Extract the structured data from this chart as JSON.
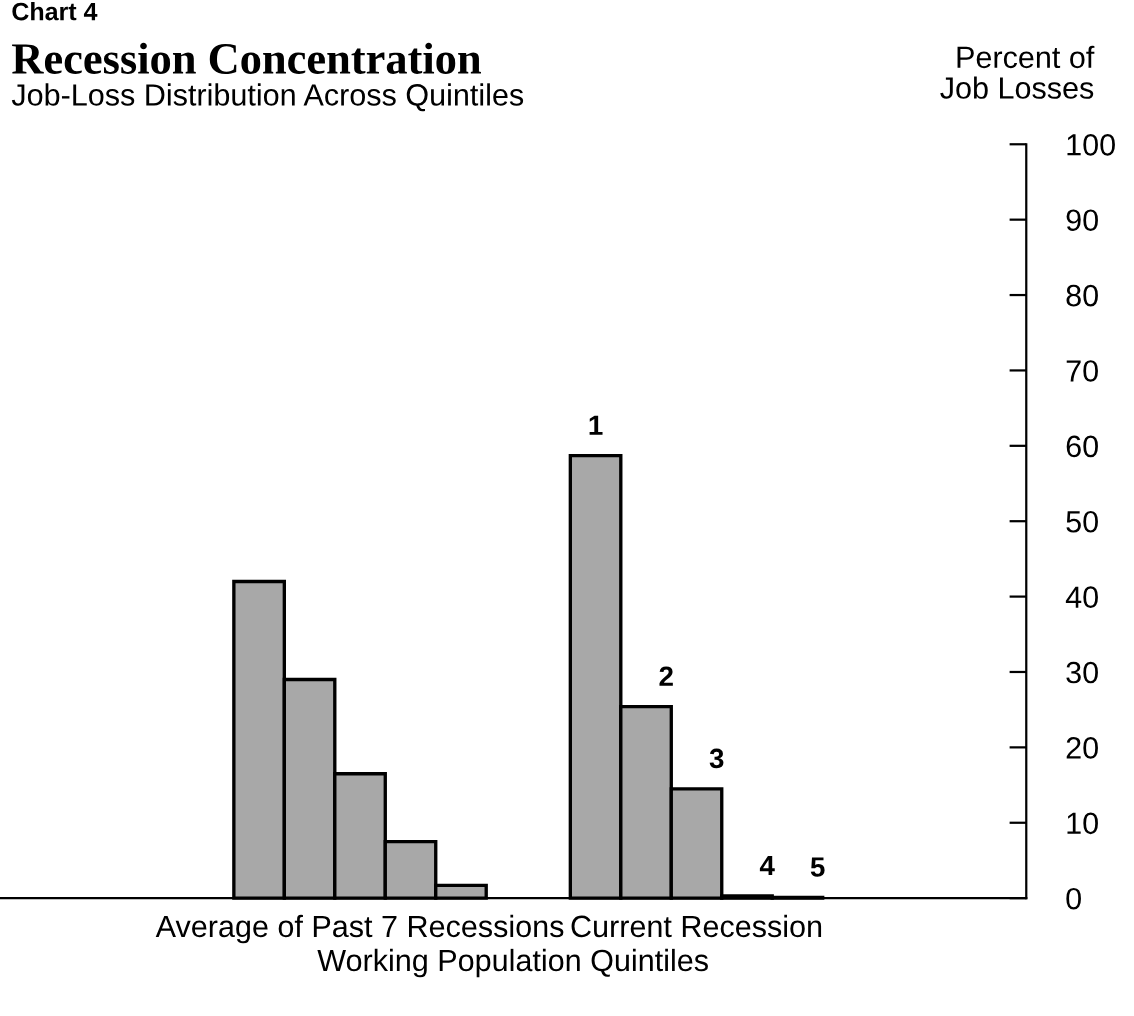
{
  "chart_data": {
    "type": "bar",
    "title": "Recession Concentration",
    "subtitle": "Job-Loss Distribution Across Quintiles",
    "annotations": [
      "Chart 4"
    ],
    "xlabel": "Working Population Quintiles",
    "ylabel": "Percent of\nJob Losses",
    "categories": [
      "Average of Past 7 Recessions",
      "Current Recession"
    ],
    "series": [
      {
        "name": "1",
        "color": "#a8a8a8",
        "values": [
          42,
          58.7
        ]
      },
      {
        "name": "2",
        "color": "#a8a8a8",
        "values": [
          29,
          25.4
        ]
      },
      {
        "name": "3",
        "color": "#a8a8a8",
        "values": [
          16.5,
          14.5
        ]
      },
      {
        "name": "4",
        "color": "#a8a8a8",
        "values": [
          7.5,
          0.3
        ]
      },
      {
        "name": "5",
        "color": "#a8a8a8",
        "values": [
          1.7,
          0.1
        ]
      }
    ],
    "ylim": [
      0,
      100
    ],
    "yticks": [
      0,
      10,
      20,
      30,
      40,
      50,
      60,
      70,
      80,
      90,
      100
    ],
    "grid": false,
    "legend": false
  }
}
